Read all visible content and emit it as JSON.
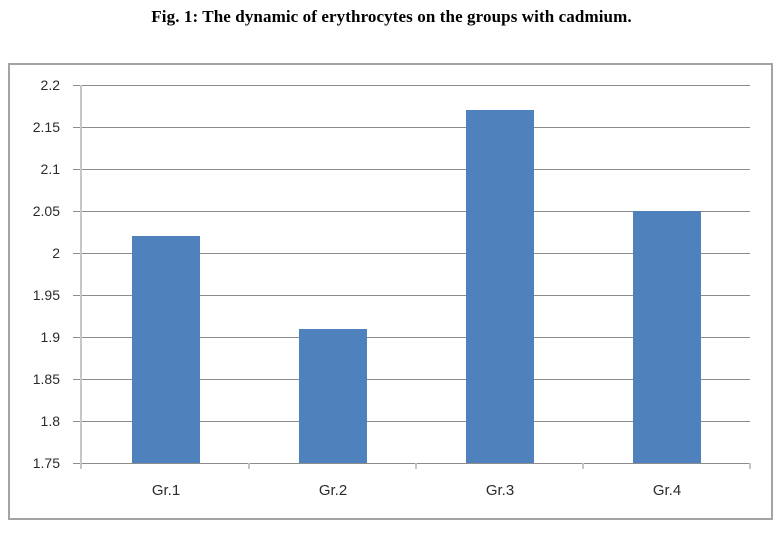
{
  "figure": {
    "caption": "Fig. 1: The dynamic of erythrocytes on the groups with cadmium."
  },
  "chart_data": {
    "type": "bar",
    "title": "Fig. 1: The dynamic of erythrocytes on the groups with cadmium.",
    "categories": [
      "Gr.1",
      "Gr.2",
      "Gr.3",
      "Gr.4"
    ],
    "values": [
      2.02,
      1.91,
      2.17,
      2.05
    ],
    "xlabel": "",
    "ylabel": "",
    "ylim": [
      1.75,
      2.2
    ],
    "ytick_step": 0.05,
    "ytick_labels": [
      "2.2",
      "2.15",
      "2.1",
      "2.05",
      "2",
      "1.95",
      "1.9",
      "1.85",
      "1.8",
      "1.75"
    ],
    "grid": true,
    "legend": false,
    "colors": {
      "bar": "#4F81BD",
      "gridline": "#8C8C8C",
      "axis_line": "#C6C6C6",
      "frame_border": "#A3A3A3",
      "text": "#2B2B2B"
    }
  }
}
